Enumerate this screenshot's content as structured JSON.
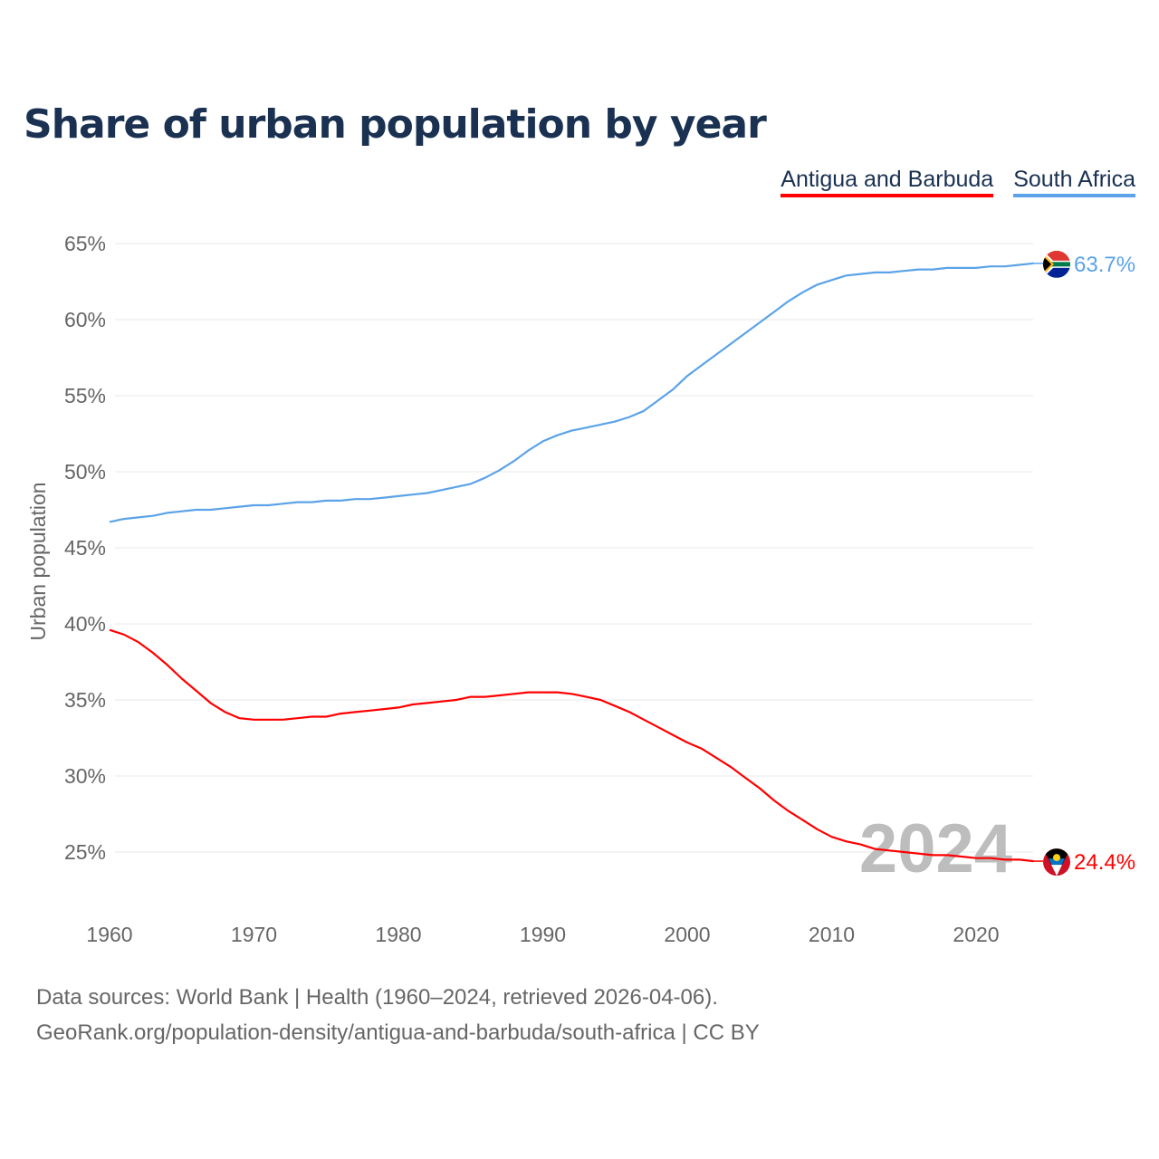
{
  "title": "Share of urban population by year",
  "footer": {
    "line1": "Data sources: World Bank | Health (1960–2024, retrieved 2026-04-06).",
    "line2": "GeoRank.org/population-density/antigua-and-barbuda/south-africa | CC BY"
  },
  "chart_data": {
    "type": "line",
    "title": "Share of urban population by year",
    "xlabel": "",
    "ylabel": "Urban population",
    "xlim": [
      1960,
      2024
    ],
    "ylim": [
      22.5,
      65
    ],
    "yticks": [
      25,
      30,
      35,
      40,
      45,
      50,
      55,
      60,
      65
    ],
    "ytick_labels": [
      "25%",
      "30%",
      "35%",
      "40%",
      "45%",
      "50%",
      "55%",
      "60%",
      "65%"
    ],
    "xticks": [
      1960,
      1970,
      1980,
      1990,
      2000,
      2010,
      2020
    ],
    "xtick_labels": [
      "1960",
      "1970",
      "1980",
      "1990",
      "2000",
      "2010",
      "2020"
    ],
    "grid": true,
    "legend_position": "top-right",
    "watermark_year": "2024",
    "x_start": 1960,
    "series": [
      {
        "name": "Antigua and Barbuda",
        "color": "#ff0000",
        "end_label": "24.4%",
        "flag": "antigua-and-barbuda",
        "values": [
          39.6,
          39.3,
          38.8,
          38.1,
          37.3,
          36.4,
          35.6,
          34.8,
          34.2,
          33.8,
          33.7,
          33.7,
          33.7,
          33.8,
          33.9,
          33.9,
          34.1,
          34.2,
          34.3,
          34.4,
          34.5,
          34.7,
          34.8,
          34.9,
          35.0,
          35.2,
          35.2,
          35.3,
          35.4,
          35.5,
          35.5,
          35.5,
          35.4,
          35.2,
          35.0,
          34.6,
          34.2,
          33.7,
          33.2,
          32.7,
          32.2,
          31.8,
          31.2,
          30.6,
          29.9,
          29.2,
          28.4,
          27.7,
          27.1,
          26.5,
          26.0,
          25.7,
          25.5,
          25.2,
          25.1,
          25.0,
          24.9,
          24.8,
          24.8,
          24.7,
          24.6,
          24.6,
          24.5,
          24.5,
          24.4
        ]
      },
      {
        "name": "South Africa",
        "color": "#5ba3e8",
        "end_label": "63.7%",
        "flag": "south-africa",
        "values": [
          46.7,
          46.9,
          47.0,
          47.1,
          47.3,
          47.4,
          47.5,
          47.5,
          47.6,
          47.7,
          47.8,
          47.8,
          47.9,
          48.0,
          48.0,
          48.1,
          48.1,
          48.2,
          48.2,
          48.3,
          48.4,
          48.5,
          48.6,
          48.8,
          49.0,
          49.2,
          49.6,
          50.1,
          50.7,
          51.4,
          52.0,
          52.4,
          52.7,
          52.9,
          53.1,
          53.3,
          53.6,
          54.0,
          54.7,
          55.4,
          56.3,
          57.0,
          57.7,
          58.4,
          59.1,
          59.8,
          60.5,
          61.2,
          61.8,
          62.3,
          62.6,
          62.9,
          63.0,
          63.1,
          63.1,
          63.2,
          63.3,
          63.3,
          63.4,
          63.4,
          63.4,
          63.5,
          63.5,
          63.6,
          63.7
        ]
      }
    ]
  }
}
